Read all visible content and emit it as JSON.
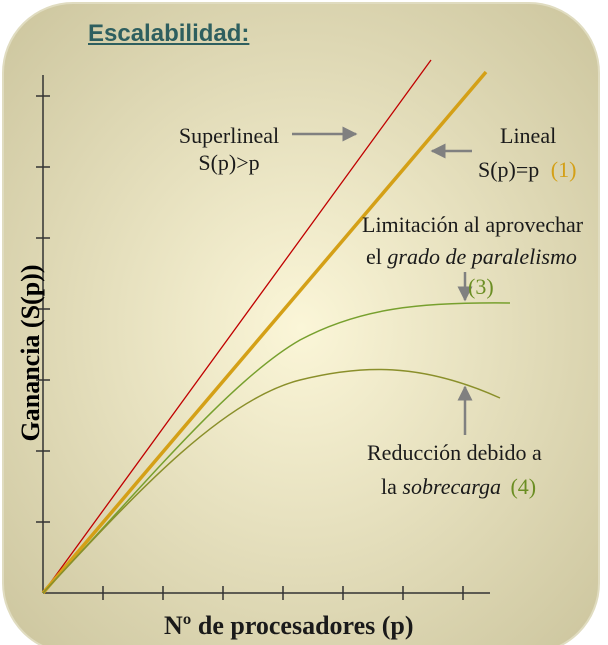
{
  "title": "Escalabilidad:",
  "axes": {
    "x_label": "Nº de procesadores (p)",
    "y_label": "Ganancia (S(p))"
  },
  "annotations": {
    "superlineal": {
      "line1": "Superlineal",
      "line2": "S(p)>p"
    },
    "lineal": {
      "line1": "Lineal",
      "line2": "S(p)=p",
      "number": "(1)"
    },
    "limitacion": {
      "line1": "Limitación al aprovechar",
      "line2_prefix": "el ",
      "line2_italic": "grado de paralelismo",
      "number": "(3)"
    },
    "reduccion": {
      "line1": "Reducción debido a",
      "line2_prefix": "la ",
      "line2_italic": "sobrecarga",
      "number": "(4)"
    }
  },
  "colors": {
    "background_gradient": [
      "#fbf6d8",
      "#c9c29a"
    ],
    "superlineal": "#c00000",
    "lineal": "#d4a017",
    "limitacion": "#77a02e",
    "reduccion": "#8a8f2a",
    "number_lineal": "#d4a017",
    "number_green": "#6b8e23",
    "title": "#2e5f5f",
    "arrows": "#808080"
  }
}
